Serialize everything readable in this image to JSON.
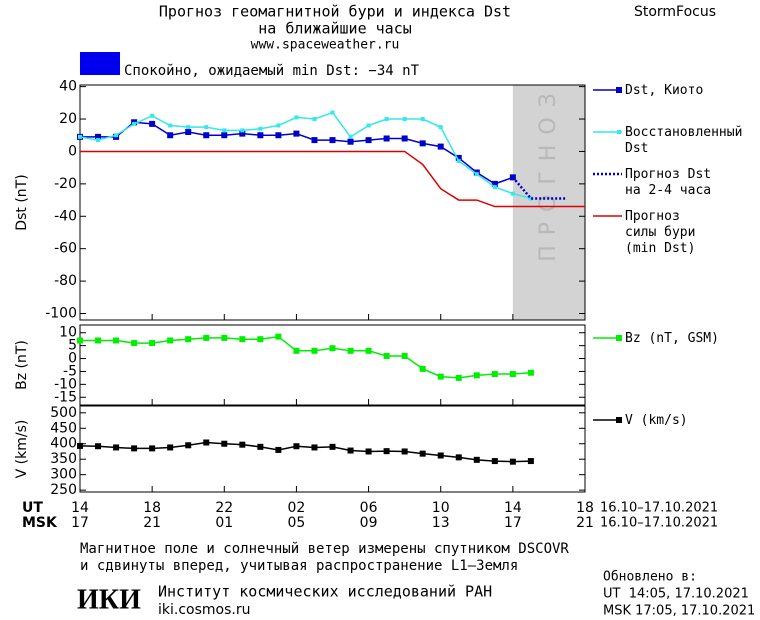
{
  "header": {
    "title": [
      "Прогноз геомагнитной бури и индекса Dst",
      "на ближайшие часы"
    ],
    "site": "www.spaceweather.ru",
    "brand": "StormFocus"
  },
  "status": {
    "color": "#0000ee",
    "text": "Спокойно, ожидаемый min Dst: −34 nT"
  },
  "chart_data": [
    {
      "type": "line",
      "ylabel": "Dst (nT)",
      "xlim": [
        0,
        28
      ],
      "ylim": [
        -104,
        41
      ],
      "yticks": [
        40,
        20,
        0,
        -20,
        -40,
        -60,
        -80,
        -100
      ],
      "forecast_zone": {
        "x": [
          24,
          28
        ],
        "label": "ПРОГНОЗ"
      },
      "series": [
        {
          "name": "Dst, Киото",
          "color": "#0000cc",
          "marker": "square",
          "x": [
            0,
            1,
            2,
            3,
            4,
            5,
            6,
            7,
            8,
            9,
            10,
            11,
            12,
            13,
            14,
            15,
            16,
            17,
            18,
            19,
            20,
            21,
            22,
            23,
            24
          ],
          "values": [
            9,
            9,
            9,
            18,
            17,
            10,
            12,
            10,
            10,
            11,
            10,
            10,
            11,
            7,
            7,
            6,
            7,
            8,
            8,
            5,
            3,
            -4,
            -13,
            -20,
            -16
          ]
        },
        {
          "name": "Восстановленный\nDst",
          "color": "#33e8e8",
          "marker": "small-square",
          "x": [
            0,
            1,
            2,
            3,
            4,
            5,
            6,
            7,
            8,
            9,
            10,
            11,
            12,
            13,
            14,
            15,
            16,
            17,
            18,
            19,
            20,
            21,
            22,
            23,
            24,
            25
          ],
          "values": [
            9,
            7,
            10,
            17,
            22,
            16,
            15,
            15,
            13,
            13,
            14,
            16,
            21,
            20,
            24,
            9,
            16,
            20,
            20,
            20,
            15,
            -6,
            -14,
            -22,
            -26,
            -29
          ]
        },
        {
          "name": "Прогноз Dst\nна 2-4 часа",
          "color": "#0000cc",
          "line_style": "dotted",
          "x": [
            24,
            25,
            26,
            27
          ],
          "values": [
            -16,
            -29,
            -29,
            -29
          ]
        },
        {
          "name": "Прогноз\nсилы бури\n(min Dst)",
          "color": "#dd0000",
          "x": [
            0,
            18,
            19,
            20,
            21,
            22,
            23,
            28
          ],
          "values": [
            0,
            0,
            -8,
            -23,
            -30,
            -30,
            -34,
            -34
          ]
        }
      ]
    },
    {
      "type": "line",
      "ylabel": "Bz (nT)",
      "xlim": [
        0,
        28
      ],
      "ylim": [
        -18,
        13
      ],
      "yticks": [
        10,
        5,
        0,
        -5,
        -10,
        -15
      ],
      "series": [
        {
          "name": "Bz (nT, GSM)",
          "color": "#00ee00",
          "marker": "square",
          "x": [
            0,
            1,
            2,
            3,
            4,
            5,
            6,
            7,
            8,
            9,
            10,
            11,
            12,
            13,
            14,
            15,
            16,
            17,
            18,
            19,
            20,
            21,
            22,
            23,
            24,
            25
          ],
          "values": [
            7,
            7,
            7,
            6,
            6,
            7,
            7.5,
            8,
            8,
            7.5,
            7.5,
            8.5,
            3,
            3,
            4,
            3,
            3,
            1,
            1,
            -4,
            -7,
            -7.5,
            -6.5,
            -6,
            -6,
            -5.5
          ]
        }
      ]
    },
    {
      "type": "line",
      "ylabel": "V (km/s)",
      "xlim": [
        0,
        28
      ],
      "ylim": [
        244,
        522
      ],
      "yticks": [
        500,
        450,
        400,
        350,
        300,
        250
      ],
      "xlabel": "UT",
      "x2label": "MSK",
      "date_range": "16.10–17.10.2021",
      "xticks": [
        {
          "value": 0,
          "label": "14"
        },
        {
          "value": 4,
          "label": "18"
        },
        {
          "value": 8,
          "label": "22"
        },
        {
          "value": 12,
          "label": "02"
        },
        {
          "value": 16,
          "label": "06"
        },
        {
          "value": 20,
          "label": "10"
        },
        {
          "value": 24,
          "label": "14"
        },
        {
          "value": 28,
          "label": "18"
        }
      ],
      "x2ticks": [
        {
          "value": 0,
          "label": "17"
        },
        {
          "value": 4,
          "label": "21"
        },
        {
          "value": 8,
          "label": "01"
        },
        {
          "value": 12,
          "label": "05"
        },
        {
          "value": 16,
          "label": "09"
        },
        {
          "value": 20,
          "label": "13"
        },
        {
          "value": 24,
          "label": "17"
        },
        {
          "value": 28,
          "label": "21"
        }
      ],
      "series": [
        {
          "name": "V (km/s)",
          "color": "#000000",
          "marker": "square",
          "x": [
            0,
            1,
            2,
            3,
            4,
            5,
            6,
            7,
            8,
            9,
            10,
            11,
            12,
            13,
            14,
            15,
            16,
            17,
            18,
            19,
            20,
            21,
            22,
            23,
            24,
            25
          ],
          "values": [
            393,
            392,
            388,
            385,
            385,
            388,
            395,
            404,
            400,
            397,
            390,
            380,
            392,
            388,
            390,
            378,
            375,
            376,
            375,
            368,
            362,
            356,
            348,
            344,
            342,
            344
          ]
        }
      ]
    }
  ],
  "footer": {
    "note": [
      "Магнитное поле и солнечный ветер измерены спутником DSCOVR",
      "и сдвинуты вперед, учитывая распространение L1–Земля"
    ],
    "logo": "ИКИ",
    "institute": "Институт космических исследований РАН",
    "url": "iki.cosmos.ru",
    "updated": [
      "Обновлено в:",
      "UT  14:05, 17.10.2021",
      "MSK 17:05, 17.10.2021"
    ]
  }
}
